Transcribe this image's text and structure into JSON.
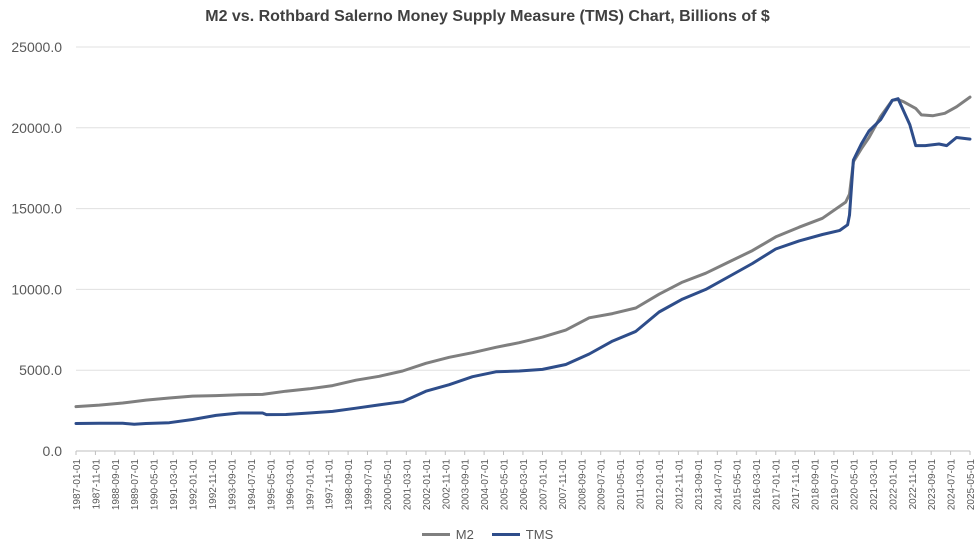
{
  "chart_data": {
    "type": "line",
    "title": "M2 vs. Rothbard Salerno Money Supply Measure (TMS) Chart, Billions of $",
    "xlabel": "",
    "ylabel": "",
    "ylim": [
      0,
      25000
    ],
    "y_ticks": [
      "0.0",
      "5000.0",
      "10000.0",
      "15000.0",
      "20000.0",
      "25000.0"
    ],
    "x_tick_labels": [
      "1987-01-01",
      "1987-11-01",
      "1988-09-01",
      "1989-07-01",
      "1990-05-01",
      "1991-03-01",
      "1992-01-01",
      "1992-11-01",
      "1993-09-01",
      "1994-07-01",
      "1995-05-01",
      "1996-03-01",
      "1997-01-01",
      "1997-11-01",
      "1998-09-01",
      "1999-07-01",
      "2000-05-01",
      "2001-03-01",
      "2002-01-01",
      "2002-11-01",
      "2003-09-01",
      "2004-07-01",
      "2005-05-01",
      "2006-03-01",
      "2007-01-01",
      "2007-11-01",
      "2008-09-01",
      "2009-07-01",
      "2010-05-01",
      "2011-03-01",
      "2012-01-01",
      "2012-11-01",
      "2013-09-01",
      "2014-07-01",
      "2015-05-01",
      "2016-03-01",
      "2017-01-01",
      "2017-11-01",
      "2018-09-01",
      "2019-07-01",
      "2020-05-01",
      "2021-03-01",
      "2022-01-01",
      "2022-11-01",
      "2023-09-01",
      "2024-07-01",
      "2025-05-01"
    ],
    "x_range": [
      "1987-01-01",
      "2025-05-01"
    ],
    "grid": "horizontal",
    "legend_position": "bottom",
    "series": [
      {
        "name": "M2",
        "color": "#7f7f7f",
        "points": [
          [
            "1987-01-01",
            2750
          ],
          [
            "1988-01-01",
            2840
          ],
          [
            "1989-01-01",
            2970
          ],
          [
            "1990-01-01",
            3150
          ],
          [
            "1991-01-01",
            3280
          ],
          [
            "1992-01-01",
            3400
          ],
          [
            "1993-01-01",
            3430
          ],
          [
            "1994-01-01",
            3480
          ],
          [
            "1995-01-01",
            3500
          ],
          [
            "1996-01-01",
            3700
          ],
          [
            "1997-01-01",
            3850
          ],
          [
            "1998-01-01",
            4050
          ],
          [
            "1999-01-01",
            4380
          ],
          [
            "2000-01-01",
            4620
          ],
          [
            "2001-01-01",
            4950
          ],
          [
            "2002-01-01",
            5430
          ],
          [
            "2003-01-01",
            5800
          ],
          [
            "2004-01-01",
            6080
          ],
          [
            "2005-01-01",
            6420
          ],
          [
            "2006-01-01",
            6700
          ],
          [
            "2007-01-01",
            7050
          ],
          [
            "2008-01-01",
            7480
          ],
          [
            "2009-01-01",
            8240
          ],
          [
            "2010-01-01",
            8500
          ],
          [
            "2011-01-01",
            8850
          ],
          [
            "2012-01-01",
            9700
          ],
          [
            "2013-01-01",
            10450
          ],
          [
            "2014-01-01",
            11000
          ],
          [
            "2015-01-01",
            11700
          ],
          [
            "2016-01-01",
            12400
          ],
          [
            "2017-01-01",
            13250
          ],
          [
            "2018-01-01",
            13850
          ],
          [
            "2019-01-01",
            14400
          ],
          [
            "2020-01-01",
            15400
          ],
          [
            "2020-03-01",
            15900
          ],
          [
            "2020-05-01",
            17900
          ],
          [
            "2020-09-01",
            18700
          ],
          [
            "2021-01-01",
            19400
          ],
          [
            "2021-07-01",
            20700
          ],
          [
            "2022-01-01",
            21700
          ],
          [
            "2022-04-01",
            21750
          ],
          [
            "2022-07-01",
            21600
          ],
          [
            "2023-01-01",
            21200
          ],
          [
            "2023-04-01",
            20800
          ],
          [
            "2023-10-01",
            20750
          ],
          [
            "2024-04-01",
            20900
          ],
          [
            "2024-10-01",
            21300
          ],
          [
            "2025-05-01",
            21900
          ]
        ]
      },
      {
        "name": "TMS",
        "color": "#2e4d8a",
        "points": [
          [
            "1987-01-01",
            1700
          ],
          [
            "1988-01-01",
            1720
          ],
          [
            "1989-01-01",
            1720
          ],
          [
            "1989-07-01",
            1650
          ],
          [
            "1990-01-01",
            1700
          ],
          [
            "1991-01-01",
            1750
          ],
          [
            "1992-01-01",
            1950
          ],
          [
            "1993-01-01",
            2200
          ],
          [
            "1994-01-01",
            2350
          ],
          [
            "1995-01-01",
            2350
          ],
          [
            "1995-03-01",
            2250
          ],
          [
            "1996-01-01",
            2260
          ],
          [
            "1997-01-01",
            2350
          ],
          [
            "1998-01-01",
            2450
          ],
          [
            "1999-01-01",
            2650
          ],
          [
            "2000-01-01",
            2850
          ],
          [
            "2001-01-01",
            3050
          ],
          [
            "2002-01-01",
            3700
          ],
          [
            "2003-01-01",
            4100
          ],
          [
            "2004-01-01",
            4600
          ],
          [
            "2005-01-01",
            4900
          ],
          [
            "2006-01-01",
            4950
          ],
          [
            "2007-01-01",
            5050
          ],
          [
            "2008-01-01",
            5350
          ],
          [
            "2009-01-01",
            6000
          ],
          [
            "2010-01-01",
            6800
          ],
          [
            "2011-01-01",
            7400
          ],
          [
            "2012-01-01",
            8600
          ],
          [
            "2013-01-01",
            9400
          ],
          [
            "2014-01-01",
            10000
          ],
          [
            "2015-01-01",
            10800
          ],
          [
            "2016-01-01",
            11600
          ],
          [
            "2017-01-01",
            12500
          ],
          [
            "2018-01-01",
            13000
          ],
          [
            "2019-01-01",
            13400
          ],
          [
            "2019-10-01",
            13650
          ],
          [
            "2020-02-01",
            14000
          ],
          [
            "2020-03-01",
            14600
          ],
          [
            "2020-05-01",
            18000
          ],
          [
            "2020-09-01",
            19000
          ],
          [
            "2021-01-01",
            19800
          ],
          [
            "2021-07-01",
            20500
          ],
          [
            "2022-01-01",
            21700
          ],
          [
            "2022-04-01",
            21800
          ],
          [
            "2022-07-01",
            21000
          ],
          [
            "2022-10-01",
            20200
          ],
          [
            "2023-01-01",
            18900
          ],
          [
            "2023-06-01",
            18900
          ],
          [
            "2024-01-01",
            19000
          ],
          [
            "2024-05-01",
            18900
          ],
          [
            "2024-10-01",
            19400
          ],
          [
            "2025-05-01",
            19300
          ]
        ]
      }
    ]
  }
}
